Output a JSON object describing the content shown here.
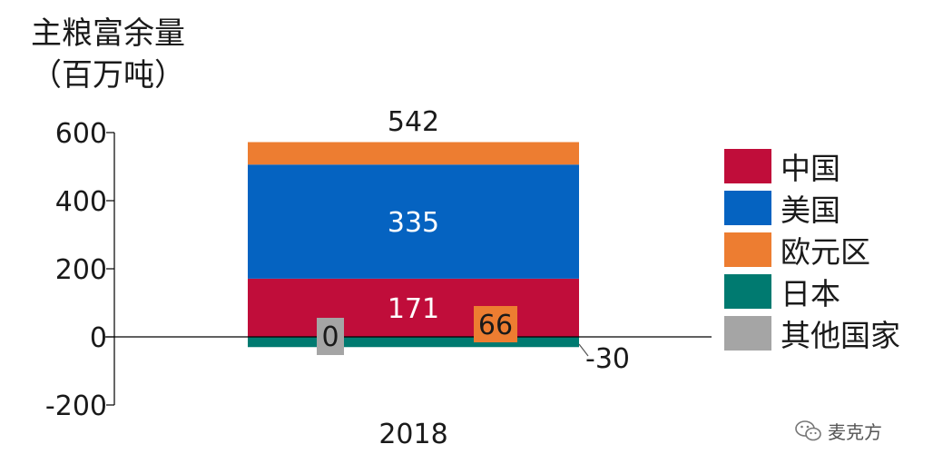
{
  "chart_data": {
    "type": "bar",
    "stacked": true,
    "title": "",
    "ylabel_lines": [
      "主粮富余量",
      "（百万吨）"
    ],
    "xlabel": "",
    "categories": [
      "2018"
    ],
    "ylim": [
      -200,
      600
    ],
    "yticks": [
      600,
      400,
      200,
      0,
      -200
    ],
    "ytick_labels": [
      "600",
      "400",
      "200",
      "0",
      "-200"
    ],
    "total_label": "542",
    "grid": false,
    "legend_position": "right",
    "series": [
      {
        "name": "中国",
        "values": [
          171
        ],
        "label": "171",
        "color": "#c00d3a"
      },
      {
        "name": "美国",
        "values": [
          335
        ],
        "label": "335",
        "color": "#0563c1"
      },
      {
        "name": "欧元区",
        "values": [
          66
        ],
        "label": "66",
        "color": "#ed7d31"
      },
      {
        "name": "日本",
        "values": [
          -30
        ],
        "label": "-30",
        "color": "#007a70"
      },
      {
        "name": "其他国家",
        "values": [
          0
        ],
        "label": "0",
        "color": "#a5a5a5"
      }
    ]
  },
  "watermark": {
    "text": "麦克方",
    "icon": "wechat-icon"
  }
}
